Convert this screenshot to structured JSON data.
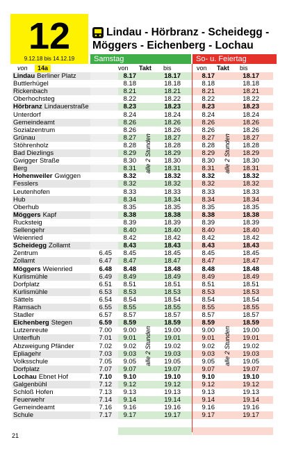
{
  "header": {
    "line_number": "12",
    "validity": "9.12.18 bis 14.12.19",
    "title_lines": [
      "Lindau - Hörbranz - Scheidegg -",
      "Möggers - Eichenberg - Lochau"
    ]
  },
  "days": {
    "saturday": "Samstag",
    "sunday": "So- u. Feiertag"
  },
  "subheader": {
    "from_label": "von",
    "from_line": "14a",
    "sat": [
      "von",
      "Takt",
      "bis"
    ],
    "sun": [
      "von",
      "Takt",
      "bis"
    ]
  },
  "takt": {
    "sat": [
      "alle 2 Stunden",
      "alle 2 Stunden"
    ],
    "sun": [
      "alle 2 Stunden",
      "alle 2 Stunden"
    ]
  },
  "rows": [
    {
      "place": "Lindau",
      "stop": "Berliner Platz",
      "early": null,
      "sat": [
        "8.17",
        "18.17"
      ],
      "sun": [
        "8.17",
        "18.17"
      ]
    },
    {
      "stop": "Buttlerhügel",
      "early": null,
      "sat": [
        "8.18",
        "18.18"
      ],
      "sun": [
        "8.18",
        "18.18"
      ]
    },
    {
      "stop": "Rickenbach",
      "early": null,
      "sat": [
        "8.21",
        "18.21"
      ],
      "sun": [
        "8.21",
        "18.21"
      ]
    },
    {
      "stop": "Oberhochsteg",
      "early": null,
      "sat": [
        "8.22",
        "18.22"
      ],
      "sun": [
        "8.22",
        "18.22"
      ]
    },
    {
      "place": "Hörbranz",
      "stop": "Lindauerstraße",
      "early": null,
      "sat": [
        "8.23",
        "18.23"
      ],
      "sun": [
        "8.23",
        "18.23"
      ]
    },
    {
      "stop": "Unterdorf",
      "early": null,
      "sat": [
        "8.24",
        "18.24"
      ],
      "sun": [
        "8.24",
        "18.24"
      ]
    },
    {
      "stop": "Gemeindeamt",
      "early": null,
      "sat": [
        "8.26",
        "18.26"
      ],
      "sun": [
        "8.26",
        "18.26"
      ]
    },
    {
      "stop": "Sozialzentrum",
      "early": null,
      "sat": [
        "8.26",
        "18.26"
      ],
      "sun": [
        "8.26",
        "18.26"
      ]
    },
    {
      "stop": "Grünau",
      "early": null,
      "sat": [
        "8.27",
        "18.27"
      ],
      "sun": [
        "8.27",
        "18.27"
      ]
    },
    {
      "stop": "Stöhrenholz",
      "early": null,
      "sat": [
        "8.28",
        "18.28"
      ],
      "sun": [
        "8.28",
        "18.28"
      ]
    },
    {
      "stop": "Bad Diezlings",
      "early": null,
      "sat": [
        "8.29",
        "18.29"
      ],
      "sun": [
        "8.29",
        "18.29"
      ]
    },
    {
      "stop": "Gwigger Straße",
      "early": null,
      "sat": [
        "8.30",
        "18.30"
      ],
      "sun": [
        "8.30",
        "18.30"
      ]
    },
    {
      "stop": "Berg",
      "early": null,
      "sat": [
        "8.31",
        "18.31"
      ],
      "sun": [
        "8.31",
        "18.31"
      ]
    },
    {
      "place": "Hohenweiler",
      "stop": "Gwiggen",
      "early": null,
      "sat": [
        "8.32",
        "18.32"
      ],
      "sun": [
        "8.32",
        "18.32"
      ]
    },
    {
      "stop": "Fesslers",
      "early": null,
      "sat": [
        "8.32",
        "18.32"
      ],
      "sun": [
        "8.32",
        "18.32"
      ]
    },
    {
      "stop": "Leutenhofen",
      "early": null,
      "sat": [
        "8.33",
        "18.33"
      ],
      "sun": [
        "8.33",
        "18.33"
      ]
    },
    {
      "stop": "Hub",
      "early": null,
      "sat": [
        "8.34",
        "18.34"
      ],
      "sun": [
        "8.34",
        "18.34"
      ]
    },
    {
      "stop": "Oberhub",
      "early": null,
      "sat": [
        "8.35",
        "18.35"
      ],
      "sun": [
        "8.35",
        "18.35"
      ]
    },
    {
      "place": "Möggers",
      "stop": "Kapf",
      "early": null,
      "sat": [
        "8.38",
        "18.38"
      ],
      "sun": [
        "8.38",
        "18.38"
      ]
    },
    {
      "stop": "Rucksteig",
      "early": null,
      "sat": [
        "8.39",
        "18.39"
      ],
      "sun": [
        "8.39",
        "18.39"
      ]
    },
    {
      "stop": "Sellengehr",
      "early": null,
      "sat": [
        "8.40",
        "18.40"
      ],
      "sun": [
        "8.40",
        "18.40"
      ]
    },
    {
      "stop": "Weienried",
      "early": null,
      "sat": [
        "8.42",
        "18.42"
      ],
      "sun": [
        "8.42",
        "18.42"
      ]
    },
    {
      "place": "Scheidegg",
      "stop": "Zollamt",
      "early": null,
      "sat": [
        "8.43",
        "18.43"
      ],
      "sun": [
        "8.43",
        "18.43"
      ]
    },
    {
      "stop": "Zentrum",
      "early": "6.45",
      "sat": [
        "8.45",
        "18.45"
      ],
      "sun": [
        "8.45",
        "18.45"
      ]
    },
    {
      "stop": "Zollamt",
      "early": "6.47",
      "sat": [
        "8.47",
        "18.47"
      ],
      "sun": [
        "8.47",
        "18.47"
      ]
    },
    {
      "place": "Möggers",
      "stop": "Weienried",
      "early": "6.48",
      "sat": [
        "8.48",
        "18.48"
      ],
      "sun": [
        "8.48",
        "18.48"
      ]
    },
    {
      "stop": "Kurlismühle",
      "early": "6.49",
      "sat": [
        "8.49",
        "18.49"
      ],
      "sun": [
        "8.49",
        "18.49"
      ]
    },
    {
      "stop": "Dorfplatz",
      "early": "6.51",
      "sat": [
        "8.51",
        "18.51"
      ],
      "sun": [
        "8.51",
        "18.51"
      ]
    },
    {
      "stop": "Kurlismühle",
      "early": "6.53",
      "sat": [
        "8.53",
        "18.53"
      ],
      "sun": [
        "8.53",
        "18.53"
      ]
    },
    {
      "stop": "Sättels",
      "early": "6.54",
      "sat": [
        "8.54",
        "18.54"
      ],
      "sun": [
        "8.54",
        "18.54"
      ]
    },
    {
      "stop": "Ramsach",
      "early": "6.55",
      "sat": [
        "8.55",
        "18.55"
      ],
      "sun": [
        "8.55",
        "18.55"
      ]
    },
    {
      "stop": "Stadler",
      "early": "6.57",
      "sat": [
        "8.57",
        "18.57"
      ],
      "sun": [
        "8.57",
        "18.57"
      ]
    },
    {
      "place": "Eichenberg",
      "stop": "Stegen",
      "early": "6.59",
      "sat": [
        "8.59",
        "18.59"
      ],
      "sun": [
        "8.59",
        "18.59"
      ]
    },
    {
      "stop": "Lutzenreute",
      "early": "7.00",
      "sat": [
        "9.00",
        "19.00"
      ],
      "sun": [
        "9.00",
        "19.00"
      ]
    },
    {
      "stop": "Unterfluh",
      "early": "7.01",
      "sat": [
        "9.01",
        "19.01"
      ],
      "sun": [
        "9.01",
        "19.01"
      ]
    },
    {
      "stop": "Abzweigung Pfänder",
      "early": "7.02",
      "sat": [
        "9.02",
        "19.02"
      ],
      "sun": [
        "9.02",
        "19.02"
      ]
    },
    {
      "stop": "Epliagehr",
      "early": "7.03",
      "sat": [
        "9.03",
        "19.03"
      ],
      "sun": [
        "9.03",
        "19.03"
      ]
    },
    {
      "stop": "Volksschule",
      "early": "7.05",
      "sat": [
        "9.05",
        "19.05"
      ],
      "sun": [
        "9.05",
        "19.05"
      ]
    },
    {
      "stop": "Dorfplatz",
      "early": "7.07",
      "sat": [
        "9.07",
        "19.07"
      ],
      "sun": [
        "9.07",
        "19.07"
      ]
    },
    {
      "place": "Lochau",
      "stop": "Ebnet Hof",
      "early": "7.10",
      "sat": [
        "9.10",
        "19.10"
      ],
      "sun": [
        "9.10",
        "19.10"
      ]
    },
    {
      "stop": "Galgenbühl",
      "early": "7.12",
      "sat": [
        "9.12",
        "19.12"
      ],
      "sun": [
        "9.12",
        "19.12"
      ]
    },
    {
      "stop": "Schloß Hofen",
      "early": "7.13",
      "sat": [
        "9.13",
        "19.13"
      ],
      "sun": [
        "9.13",
        "19.13"
      ]
    },
    {
      "stop": "Feuerwehr",
      "early": "7.14",
      "sat": [
        "9.14",
        "19.14"
      ],
      "sun": [
        "9.14",
        "19.14"
      ]
    },
    {
      "stop": "Gemeindeamt",
      "early": "7.16",
      "sat": [
        "9.16",
        "19.16"
      ],
      "sun": [
        "9.16",
        "19.16"
      ]
    },
    {
      "stop": "Schule",
      "early": "7.17",
      "sat": [
        "9.17",
        "19.17"
      ],
      "sun": [
        "9.17",
        "19.17"
      ]
    }
  ],
  "page_number": "21"
}
